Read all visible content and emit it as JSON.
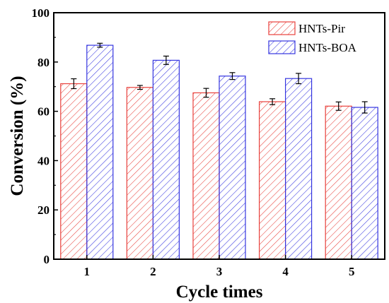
{
  "chart_data": {
    "type": "bar",
    "title": "",
    "xlabel": "Cycle times",
    "ylabel": "Conversion (%)",
    "categories": [
      "1",
      "2",
      "3",
      "4",
      "5"
    ],
    "ylim": [
      0,
      100
    ],
    "yticks": [
      0,
      20,
      40,
      60,
      80,
      100
    ],
    "grid": false,
    "legend_position": "top-right",
    "series": [
      {
        "name": "HNTs-Pir",
        "color": "#e8413c",
        "pattern": "diagonal-hatch",
        "values": [
          71.2,
          69.7,
          67.5,
          63.9,
          62.1
        ],
        "errors": [
          2.0,
          0.8,
          1.8,
          1.2,
          1.7
        ]
      },
      {
        "name": "HNTs-BOA",
        "color": "#3535e0",
        "pattern": "diagonal-hatch",
        "values": [
          86.8,
          80.7,
          74.3,
          73.3,
          61.6
        ],
        "errors": [
          0.8,
          1.7,
          1.4,
          2.1,
          2.3
        ]
      }
    ]
  }
}
